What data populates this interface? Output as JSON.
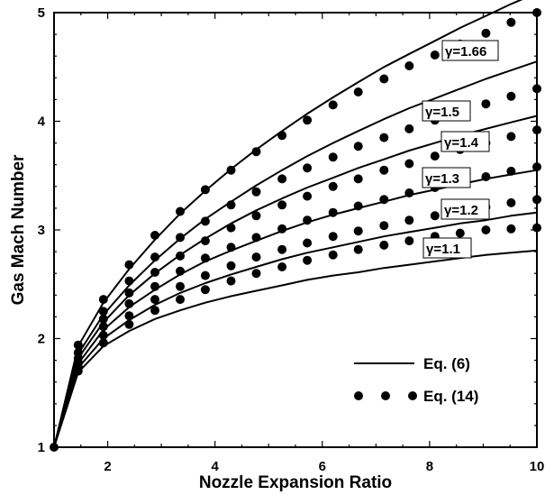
{
  "chart_data": {
    "type": "line",
    "xlabel": "Nozzle Expansion Ratio",
    "ylabel": "Gas Mach Number",
    "xlim": [
      1,
      10
    ],
    "ylim": [
      1,
      5
    ],
    "x_ticks": [
      "2",
      "4",
      "6",
      "8",
      "10"
    ],
    "y_ticks": [
      "1",
      "2",
      "3",
      "4",
      "5"
    ],
    "grid": false,
    "legend_position": "bottom-right",
    "legend": [
      {
        "label": "Eq. (6)",
        "style": "solid line"
      },
      {
        "label": "Eq. (14)",
        "style": "filled circles"
      }
    ],
    "curve_x": [
      1,
      1.45,
      1.92,
      2.4,
      2.88,
      3.35,
      3.82,
      4.3,
      4.77,
      5.25,
      5.72,
      6.2,
      6.67,
      7.15,
      7.62,
      8.1,
      8.57,
      9.05,
      9.52,
      10
    ],
    "marker_x": [
      1.45,
      1.92,
      2.4,
      2.88,
      3.35,
      3.82,
      4.3,
      4.77,
      5.25,
      5.72,
      6.2,
      6.67,
      7.15,
      7.62,
      8.1,
      8.57,
      9.05,
      9.52,
      10
    ],
    "series": [
      {
        "name": "γ=1.66",
        "eq6": [
          1.0,
          1.93,
          2.33,
          2.64,
          2.91,
          3.15,
          3.36,
          3.56,
          3.74,
          3.91,
          4.07,
          4.22,
          4.36,
          4.5,
          4.62,
          4.74,
          4.86,
          4.97,
          5.08,
          5.18
        ],
        "eq14": [
          1.94,
          2.36,
          2.68,
          2.95,
          3.17,
          3.37,
          3.55,
          3.72,
          3.87,
          4.01,
          4.15,
          4.27,
          4.39,
          4.51,
          4.61,
          4.71,
          4.81,
          4.91,
          5.0
        ]
      },
      {
        "name": "γ=1.5",
        "eq6": [
          1.0,
          1.86,
          2.22,
          2.49,
          2.72,
          2.92,
          3.1,
          3.26,
          3.41,
          3.55,
          3.68,
          3.8,
          3.91,
          4.02,
          4.12,
          4.21,
          4.3,
          4.39,
          4.47,
          4.55
        ],
        "eq14": [
          1.87,
          2.25,
          2.53,
          2.75,
          2.93,
          3.08,
          3.23,
          3.35,
          3.47,
          3.57,
          3.67,
          3.77,
          3.85,
          3.93,
          4.01,
          4.09,
          4.16,
          4.23,
          4.3
        ]
      },
      {
        "name": "γ=1.4",
        "eq6": [
          1.0,
          1.82,
          2.15,
          2.4,
          2.6,
          2.77,
          2.92,
          3.06,
          3.18,
          3.29,
          3.39,
          3.48,
          3.57,
          3.65,
          3.73,
          3.8,
          3.87,
          3.93,
          3.99,
          4.05
        ],
        "eq14": [
          1.82,
          2.18,
          2.42,
          2.61,
          2.76,
          2.9,
          3.02,
          3.13,
          3.23,
          3.31,
          3.4,
          3.47,
          3.55,
          3.61,
          3.68,
          3.74,
          3.8,
          3.86,
          3.92
        ]
      },
      {
        "name": "γ=1.3",
        "eq6": [
          1.0,
          1.77,
          2.08,
          2.29,
          2.45,
          2.59,
          2.71,
          2.81,
          2.9,
          2.99,
          3.07,
          3.14,
          3.2,
          3.26,
          3.32,
          3.37,
          3.42,
          3.47,
          3.51,
          3.55
        ],
        "eq14": [
          1.78,
          2.11,
          2.32,
          2.48,
          2.62,
          2.74,
          2.84,
          2.93,
          3.01,
          3.09,
          3.16,
          3.22,
          3.28,
          3.34,
          3.39,
          3.44,
          3.49,
          3.54,
          3.58
        ]
      },
      {
        "name": "γ=1.2",
        "eq6": [
          1.0,
          1.73,
          2.0,
          2.17,
          2.31,
          2.42,
          2.51,
          2.59,
          2.66,
          2.73,
          2.79,
          2.84,
          2.89,
          2.94,
          2.98,
          3.02,
          3.06,
          3.09,
          3.13,
          3.16
        ],
        "eq14": [
          1.74,
          2.03,
          2.21,
          2.36,
          2.48,
          2.58,
          2.67,
          2.75,
          2.82,
          2.88,
          2.94,
          2.99,
          3.04,
          3.09,
          3.13,
          3.17,
          3.21,
          3.25,
          3.28
        ]
      },
      {
        "name": "γ=1.1",
        "eq6": [
          1.0,
          1.69,
          1.93,
          2.07,
          2.18,
          2.26,
          2.33,
          2.39,
          2.44,
          2.49,
          2.54,
          2.58,
          2.61,
          2.65,
          2.68,
          2.71,
          2.74,
          2.77,
          2.79,
          2.81
        ],
        "eq14": [
          1.7,
          1.96,
          2.13,
          2.26,
          2.36,
          2.45,
          2.53,
          2.6,
          2.66,
          2.72,
          2.77,
          2.82,
          2.86,
          2.9,
          2.94,
          2.97,
          3.0,
          3.01,
          3.02
        ]
      }
    ]
  }
}
